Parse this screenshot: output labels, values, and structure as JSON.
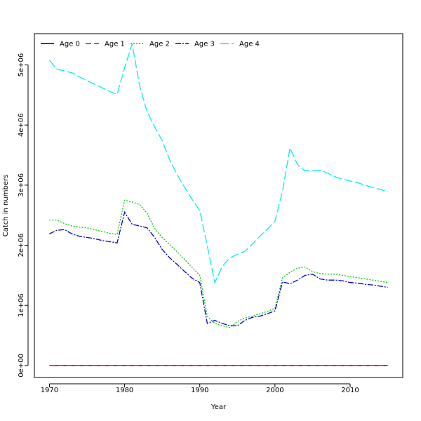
{
  "chart_data": {
    "type": "line",
    "title": "",
    "xlabel": "Year",
    "ylabel": "Catch in numbers",
    "xlim": [
      1968,
      2017
    ],
    "ylim": [
      -200000,
      5520000
    ],
    "xticks": [
      1970,
      1980,
      1990,
      2000,
      2010
    ],
    "yticks": [
      0,
      1000000,
      2000000,
      3000000,
      4000000,
      5000000
    ],
    "ytick_labels": [
      "0e+00",
      "1e+06",
      "2e+06",
      "3e+06",
      "4e+06",
      "5e+06"
    ],
    "x": [
      1970,
      1971,
      1972,
      1973,
      1974,
      1975,
      1976,
      1977,
      1978,
      1979,
      1980,
      1981,
      1982,
      1983,
      1984,
      1985,
      1986,
      1987,
      1988,
      1989,
      1990,
      1991,
      1992,
      1993,
      1994,
      1995,
      1996,
      1997,
      1998,
      1999,
      2000,
      2001,
      2002,
      2003,
      2004,
      2005,
      2006,
      2007,
      2008,
      2009,
      2010,
      2011,
      2012,
      2013,
      2014,
      2015
    ],
    "legend_position": "top",
    "grid": false,
    "series": [
      {
        "name": "Age 0",
        "color": "#000000",
        "dash": "",
        "values": [
          0,
          0,
          0,
          0,
          0,
          0,
          0,
          0,
          0,
          0,
          0,
          0,
          0,
          0,
          0,
          0,
          0,
          0,
          0,
          0,
          0,
          0,
          0,
          0,
          0,
          0,
          0,
          0,
          0,
          0,
          0,
          0,
          0,
          0,
          0,
          0,
          0,
          0,
          0,
          0,
          0,
          0,
          0,
          0,
          0,
          0
        ]
      },
      {
        "name": "Age 1",
        "color": "#ff0000",
        "dash": "8,4",
        "values": [
          0,
          0,
          0,
          0,
          0,
          0,
          0,
          0,
          0,
          0,
          0,
          0,
          0,
          0,
          0,
          0,
          0,
          0,
          0,
          0,
          0,
          0,
          0,
          0,
          0,
          0,
          0,
          0,
          0,
          0,
          0,
          0,
          0,
          0,
          0,
          0,
          0,
          0,
          0,
          0,
          0,
          0,
          0,
          0,
          0,
          0
        ]
      },
      {
        "name": "Age 2",
        "color": "#00cc00",
        "dash": "2,2",
        "values": [
          2420000,
          2420000,
          2360000,
          2320000,
          2300000,
          2290000,
          2260000,
          2230000,
          2200000,
          2180000,
          2750000,
          2720000,
          2680000,
          2530000,
          2280000,
          2130000,
          2010000,
          1890000,
          1760000,
          1630000,
          1500000,
          820000,
          700000,
          660000,
          630000,
          730000,
          790000,
          820000,
          860000,
          900000,
          950000,
          1460000,
          1550000,
          1620000,
          1640000,
          1560000,
          1530000,
          1520000,
          1520000,
          1500000,
          1480000,
          1460000,
          1440000,
          1420000,
          1400000,
          1380000
        ]
      },
      {
        "name": "Age 3",
        "color": "#0000cc",
        "dash": "8,2,2,2",
        "values": [
          2190000,
          2250000,
          2260000,
          2190000,
          2150000,
          2130000,
          2110000,
          2080000,
          2060000,
          2040000,
          2550000,
          2350000,
          2320000,
          2290000,
          2130000,
          1930000,
          1790000,
          1680000,
          1560000,
          1450000,
          1380000,
          700000,
          750000,
          700000,
          660000,
          660000,
          750000,
          800000,
          820000,
          860000,
          910000,
          1390000,
          1360000,
          1420000,
          1500000,
          1520000,
          1440000,
          1420000,
          1420000,
          1410000,
          1380000,
          1370000,
          1350000,
          1340000,
          1320000,
          1300000
        ]
      },
      {
        "name": "Age 4",
        "color": "#00eeee",
        "dash": "12,4",
        "values": [
          5080000,
          4930000,
          4900000,
          4870000,
          4800000,
          4740000,
          4680000,
          4620000,
          4560000,
          4510000,
          4950000,
          5350000,
          4650000,
          4220000,
          3970000,
          3740000,
          3420000,
          3170000,
          2960000,
          2760000,
          2580000,
          1990000,
          1380000,
          1650000,
          1790000,
          1850000,
          1900000,
          2020000,
          2150000,
          2270000,
          2400000,
          2900000,
          3620000,
          3340000,
          3240000,
          3240000,
          3250000,
          3200000,
          3140000,
          3100000,
          3070000,
          3040000,
          3000000,
          2960000,
          2930000,
          2890000
        ]
      }
    ]
  }
}
